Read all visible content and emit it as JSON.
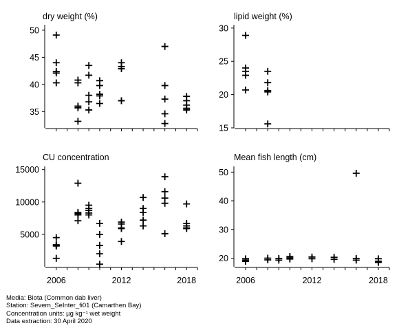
{
  "chart_data": [
    {
      "type": "scatter",
      "title": "dry weight (%)",
      "xlim": [
        2005,
        2019
      ],
      "ylim": [
        32,
        51
      ],
      "yticks": [
        35,
        40,
        45,
        50
      ],
      "ytick_labels": [
        "35",
        "40",
        "45",
        "50"
      ],
      "xticks": [
        2006,
        2012,
        2018
      ],
      "xtick_labels": [],
      "marker": "plus",
      "points": [
        {
          "x": 2006,
          "y": 49.1
        },
        {
          "x": 2006,
          "y": 44.0
        },
        {
          "x": 2006,
          "y": 42.4
        },
        {
          "x": 2006,
          "y": 42.1
        },
        {
          "x": 2006,
          "y": 40.3
        },
        {
          "x": 2008,
          "y": 40.8
        },
        {
          "x": 2008,
          "y": 40.3
        },
        {
          "x": 2008,
          "y": 36.0
        },
        {
          "x": 2008,
          "y": 35.7
        },
        {
          "x": 2008,
          "y": 33.2
        },
        {
          "x": 2009,
          "y": 43.5
        },
        {
          "x": 2009,
          "y": 41.7
        },
        {
          "x": 2009,
          "y": 38.0
        },
        {
          "x": 2009,
          "y": 36.8
        },
        {
          "x": 2009,
          "y": 35.3
        },
        {
          "x": 2010,
          "y": 40.7
        },
        {
          "x": 2010,
          "y": 39.8
        },
        {
          "x": 2010,
          "y": 38.2
        },
        {
          "x": 2010,
          "y": 37.9
        },
        {
          "x": 2010,
          "y": 36.5
        },
        {
          "x": 2012,
          "y": 44.0
        },
        {
          "x": 2012,
          "y": 43.3
        },
        {
          "x": 2012,
          "y": 42.9
        },
        {
          "x": 2012,
          "y": 37.0
        },
        {
          "x": 2012,
          "y": 37.0
        },
        {
          "x": 2016,
          "y": 47.0
        },
        {
          "x": 2016,
          "y": 39.8
        },
        {
          "x": 2016,
          "y": 37.3
        },
        {
          "x": 2016,
          "y": 34.6
        },
        {
          "x": 2016,
          "y": 32.8
        },
        {
          "x": 2018,
          "y": 37.8
        },
        {
          "x": 2018,
          "y": 37.0
        },
        {
          "x": 2018,
          "y": 36.2
        },
        {
          "x": 2018,
          "y": 35.6
        },
        {
          "x": 2018,
          "y": 35.3
        }
      ]
    },
    {
      "type": "scatter",
      "title": "lipid weight (%)",
      "xlim": [
        2005,
        2019
      ],
      "ylim": [
        15,
        30.5
      ],
      "yticks": [
        15,
        20,
        25,
        30
      ],
      "ytick_labels": [
        "15",
        "20",
        "25",
        "30"
      ],
      "xticks": [
        2006,
        2012,
        2018
      ],
      "xtick_labels": [],
      "marker": "plus",
      "points": [
        {
          "x": 2006,
          "y": 28.9
        },
        {
          "x": 2006,
          "y": 24.0
        },
        {
          "x": 2006,
          "y": 23.5
        },
        {
          "x": 2006,
          "y": 22.9
        },
        {
          "x": 2006,
          "y": 20.7
        },
        {
          "x": 2008,
          "y": 23.5
        },
        {
          "x": 2008,
          "y": 21.8
        },
        {
          "x": 2008,
          "y": 20.6
        },
        {
          "x": 2008,
          "y": 20.4
        },
        {
          "x": 2008,
          "y": 15.6
        }
      ]
    },
    {
      "type": "scatter",
      "title": "CU concentration",
      "xlim": [
        2005,
        2019
      ],
      "ylim": [
        0,
        15500
      ],
      "yticks": [
        5000,
        10000,
        15000
      ],
      "ytick_labels": [
        "5000",
        "10000",
        "15000"
      ],
      "xticks": [
        2006,
        2012,
        2018
      ],
      "xtick_labels": [
        "2006",
        "2012",
        "2018"
      ],
      "marker": "plus",
      "points": [
        {
          "x": 2006,
          "y": 4500
        },
        {
          "x": 2006,
          "y": 3400
        },
        {
          "x": 2006,
          "y": 3200
        },
        {
          "x": 2006,
          "y": 3300
        },
        {
          "x": 2006,
          "y": 1300
        },
        {
          "x": 2008,
          "y": 12900
        },
        {
          "x": 2008,
          "y": 8400
        },
        {
          "x": 2008,
          "y": 8200
        },
        {
          "x": 2008,
          "y": 8000
        },
        {
          "x": 2008,
          "y": 7100
        },
        {
          "x": 2009,
          "y": 9500
        },
        {
          "x": 2009,
          "y": 9000
        },
        {
          "x": 2009,
          "y": 8700
        },
        {
          "x": 2009,
          "y": 8300
        },
        {
          "x": 2009,
          "y": 8000
        },
        {
          "x": 2010,
          "y": 6700
        },
        {
          "x": 2010,
          "y": 5000
        },
        {
          "x": 2010,
          "y": 3300
        },
        {
          "x": 2010,
          "y": 2000
        },
        {
          "x": 2010,
          "y": 400
        },
        {
          "x": 2012,
          "y": 6900
        },
        {
          "x": 2012,
          "y": 6600
        },
        {
          "x": 2012,
          "y": 6000
        },
        {
          "x": 2012,
          "y": 5900
        },
        {
          "x": 2012,
          "y": 3900
        },
        {
          "x": 2014,
          "y": 10700
        },
        {
          "x": 2014,
          "y": 9000
        },
        {
          "x": 2014,
          "y": 8400
        },
        {
          "x": 2014,
          "y": 7200
        },
        {
          "x": 2014,
          "y": 6300
        },
        {
          "x": 2016,
          "y": 13900
        },
        {
          "x": 2016,
          "y": 11600
        },
        {
          "x": 2016,
          "y": 10600
        },
        {
          "x": 2016,
          "y": 9800
        },
        {
          "x": 2016,
          "y": 5100
        },
        {
          "x": 2018,
          "y": 9700
        },
        {
          "x": 2018,
          "y": 6700
        },
        {
          "x": 2018,
          "y": 6300
        },
        {
          "x": 2018,
          "y": 6000
        },
        {
          "x": 2018,
          "y": 5900
        }
      ]
    },
    {
      "type": "scatter",
      "title": "Mean fish length (cm)",
      "xlim": [
        2005,
        2019
      ],
      "ylim": [
        17,
        52
      ],
      "yticks": [
        20,
        30,
        40,
        50
      ],
      "ytick_labels": [
        "20",
        "30",
        "40",
        "50"
      ],
      "xticks": [
        2006,
        2012,
        2018
      ],
      "xtick_labels": [
        "2006",
        "2012",
        "2018"
      ],
      "marker": "plus",
      "points": [
        {
          "x": 2006,
          "y": 19.8
        },
        {
          "x": 2006,
          "y": 19.3
        },
        {
          "x": 2006,
          "y": 18.9
        },
        {
          "x": 2008,
          "y": 20.0
        },
        {
          "x": 2008,
          "y": 19.4
        },
        {
          "x": 2009,
          "y": 19.9
        },
        {
          "x": 2009,
          "y": 19.3
        },
        {
          "x": 2010,
          "y": 20.6
        },
        {
          "x": 2010,
          "y": 20.1
        },
        {
          "x": 2010,
          "y": 19.7
        },
        {
          "x": 2012,
          "y": 20.4
        },
        {
          "x": 2012,
          "y": 19.8
        },
        {
          "x": 2014,
          "y": 20.3
        },
        {
          "x": 2014,
          "y": 19.6
        },
        {
          "x": 2016,
          "y": 49.6
        },
        {
          "x": 2016,
          "y": 19.9
        },
        {
          "x": 2016,
          "y": 19.3
        },
        {
          "x": 2018,
          "y": 19.8
        },
        {
          "x": 2018,
          "y": 18.9
        },
        {
          "x": 2018,
          "y": 18.5
        }
      ]
    }
  ],
  "footer": {
    "media": "Media: Biota (Common dab liver)",
    "station": "Station: Severn_SeInter_fi01 (Camarthen Bay)",
    "units": "Concentration units:  µg kg⁻¹ wet weight",
    "extraction": "Data extraction: 30 April 2020"
  }
}
